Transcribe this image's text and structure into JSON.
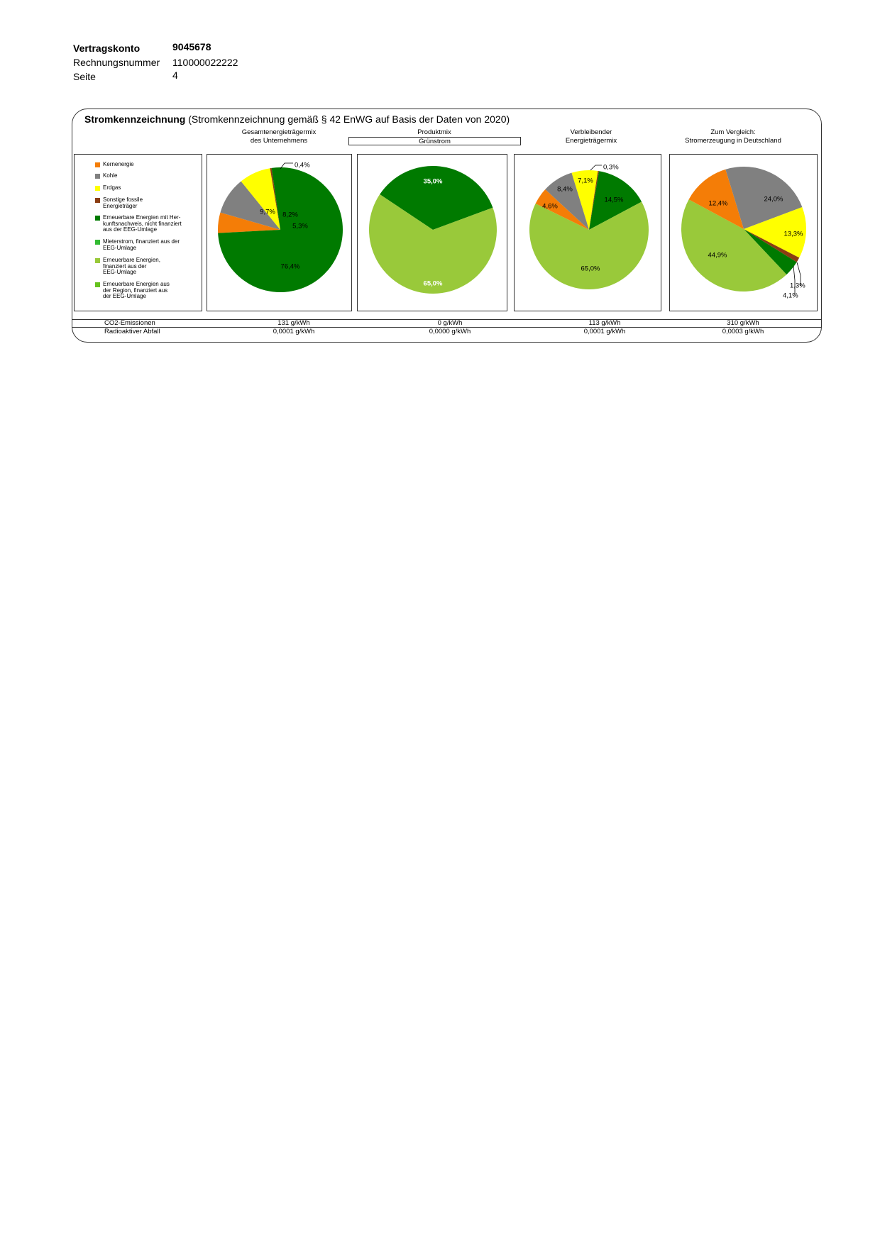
{
  "header": {
    "vertragskonto_label": "Vertragskonto",
    "vertragskonto_value": "9045678",
    "rechnungsnummer_label": "Rechnungsnummer",
    "rechnungsnummer_value": "110000022222",
    "seite_label": "Seite",
    "seite_value": "4"
  },
  "panel": {
    "title_bold": "Stromkennzeichnung",
    "title_rest": "(Stromkennzeichnung gemäß § 42 EnWG auf Basis der Daten von 2020)",
    "col1_heading": [
      "Gesamtenergieträgermix",
      "des Unternehmens"
    ],
    "col2_heading": "Produktmix",
    "col2_product": "Grünstrom",
    "col3_heading": [
      "Verbleibender",
      "Energieträgermix"
    ],
    "col4_heading": [
      "Zum Vergleich:",
      "Stromerzeugung in Deutschland"
    ]
  },
  "legend": [
    {
      "label": "Kernenergie",
      "color": "#f47d07"
    },
    {
      "label": "Kohle",
      "color": "#808080"
    },
    {
      "label": "Erdgas",
      "color": "#ffff00"
    },
    {
      "label": "Sonstige fossile Energieträger",
      "color": "#8b3d12"
    },
    {
      "label": "Erneuerbare Energien mit Herkunftsnachweis, nicht finanziert aus der EEG-Umlage",
      "color": "#007a00"
    },
    {
      "label": "Mieterstrom, finanziert aus der EEG-Umlage",
      "color": "#33bb33"
    },
    {
      "label": "Erneuerbare Energien, finanziert aus der EEG-Umlage",
      "color": "#99c93a"
    },
    {
      "label": "Erneuerbare Energien aus der Region, finanziert aus der EEG-Umlage",
      "color": "#66c21e"
    }
  ],
  "legend_display": [
    "Kernenergie",
    "Kohle",
    "Erdgas",
    "Sonstige fossile\nEnergieträger",
    "Erneuerbare Energien mit Her-\nkunftsnachweis, nicht finanziert\naus der EEG-Umlage",
    "Mieterstrom, finanziert aus der\nEEG-Umlage",
    "Erneuerbare Energien,\nfinanziert aus der\nEEG-Umlage",
    "Erneuerbare Energien aus\nder Region, finanziert aus\nder EEG-Umlage"
  ],
  "chart_data": [
    {
      "type": "pie",
      "title": "Gesamtenergieträgermix des Unternehmens",
      "slices": [
        {
          "category": "Kernenergie",
          "value": 5.3,
          "label": "5,3%"
        },
        {
          "category": "Kohle",
          "value": 9.7,
          "label": "9,7%"
        },
        {
          "category": "Erdgas",
          "value": 8.2,
          "label": "8,2%"
        },
        {
          "category": "Sonstige fossile Energieträger",
          "value": 0.4,
          "label": "0,4%"
        },
        {
          "category": "Erneuerbare Energien mit Herkunftsnachweis, nicht finanziert aus der EEG-Umlage",
          "value": 76.4,
          "label": "76,4%"
        }
      ]
    },
    {
      "type": "pie",
      "title": "Produktmix Grünstrom",
      "slices": [
        {
          "category": "Erneuerbare Energien mit Herkunftsnachweis, nicht finanziert aus der EEG-Umlage",
          "value": 35.0,
          "label": "35,0%"
        },
        {
          "category": "Erneuerbare Energien, finanziert aus der EEG-Umlage",
          "value": 65.0,
          "label": "65,0%"
        }
      ]
    },
    {
      "type": "pie",
      "title": "Verbleibender Energieträgermix",
      "slices": [
        {
          "category": "Erdgas",
          "value": 7.1,
          "label": "7,1%"
        },
        {
          "category": "Sonstige fossile Energieträger",
          "value": 0.3,
          "label": "0,3%"
        },
        {
          "category": "Erneuerbare Energien mit Herkunftsnachweis, nicht finanziert aus der EEG-Umlage",
          "value": 14.5,
          "label": "14,5%"
        },
        {
          "category": "Erneuerbare Energien, finanziert aus der EEG-Umlage",
          "value": 65.0,
          "label": "65,0%"
        },
        {
          "category": "Kernenergie",
          "value": 4.6,
          "label": "4,6%"
        },
        {
          "category": "Kohle",
          "value": 8.4,
          "label": "8,4%"
        }
      ]
    },
    {
      "type": "pie",
      "title": "Zum Vergleich: Stromerzeugung in Deutschland",
      "slices": [
        {
          "category": "Kohle",
          "value": 24.0,
          "label": "24,0%"
        },
        {
          "category": "Erdgas",
          "value": 13.3,
          "label": "13,3%"
        },
        {
          "category": "Sonstige fossile Energieträger",
          "value": 1.3,
          "label": "1,3%"
        },
        {
          "category": "Erneuerbare Energien mit Herkunftsnachweis, nicht finanziert aus der EEG-Umlage",
          "value": 4.1,
          "label": "4,1%"
        },
        {
          "category": "Erneuerbare Energien, finanziert aus der EEG-Umlage",
          "value": 44.9,
          "label": "44,9%"
        },
        {
          "category": "Kernenergie",
          "value": 12.4,
          "label": "12,4%"
        }
      ]
    }
  ],
  "footer": {
    "co2_label": "CO2-Emissionen",
    "co2_values": [
      "131 g/kWh",
      "0 g/kWh",
      "113 g/kWh",
      "310 g/kWh"
    ],
    "radio_label": "Radioaktiver Abfall",
    "radio_values": [
      "0,0001 g/kWh",
      "0,0000 g/kWh",
      "0,0001 g/kWh",
      "0,0003 g/kWh"
    ]
  }
}
